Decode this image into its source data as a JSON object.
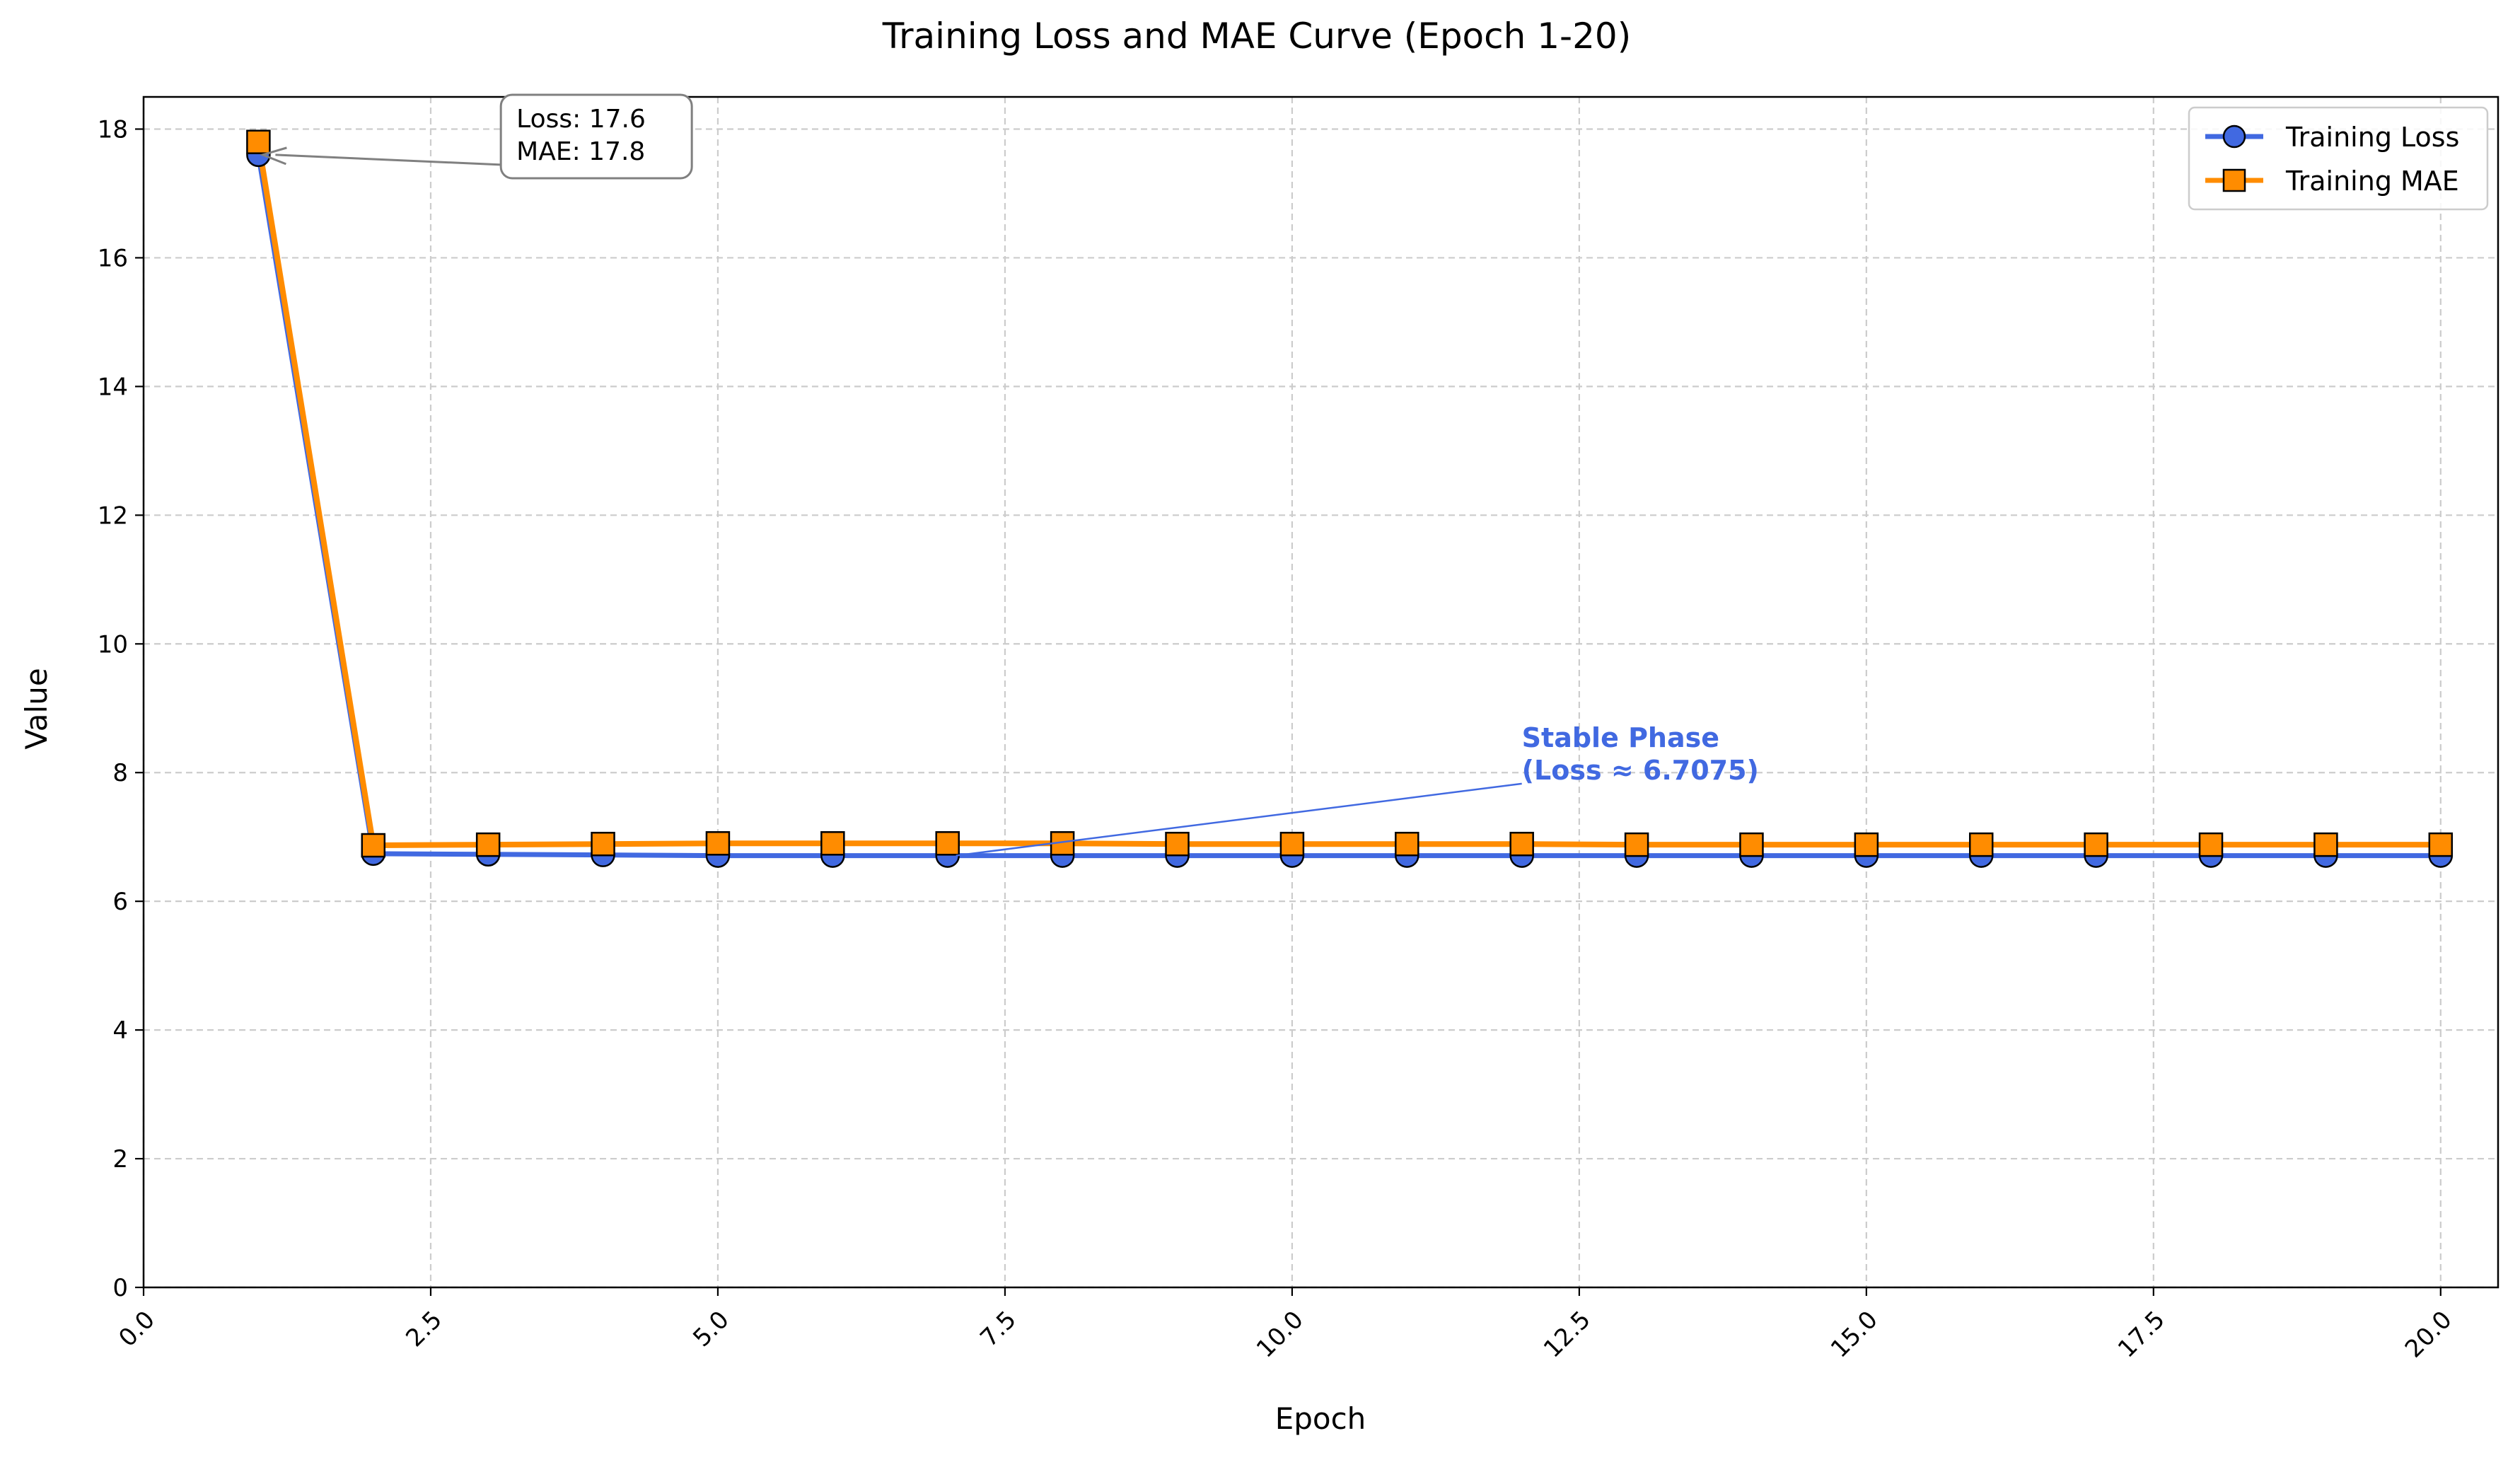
{
  "chart_data": {
    "type": "line",
    "title": "Training Loss and MAE Curve (Epoch 1-20)",
    "xlabel": "Epoch",
    "ylabel": "Value",
    "xlim": [
      0,
      20.5
    ],
    "ylim": [
      0,
      18.5
    ],
    "xticks": [
      0.0,
      2.5,
      5.0,
      7.5,
      10.0,
      12.5,
      15.0,
      17.5,
      20.0
    ],
    "xtick_labels": [
      "0.0",
      "2.5",
      "5.0",
      "7.5",
      "10.0",
      "12.5",
      "15.0",
      "17.5",
      "20.0"
    ],
    "yticks": [
      0,
      2,
      4,
      6,
      8,
      10,
      12,
      14,
      16,
      18
    ],
    "ytick_labels": [
      "0",
      "2",
      "4",
      "6",
      "8",
      "10",
      "12",
      "14",
      "16",
      "18"
    ],
    "grid": true,
    "legend_position": "top-right",
    "x": [
      1,
      2,
      3,
      4,
      5,
      6,
      7,
      8,
      9,
      10,
      11,
      12,
      13,
      14,
      15,
      16,
      17,
      18,
      19,
      20
    ],
    "series": [
      {
        "name": "Training Loss",
        "color": "#4169E1",
        "marker": "circle",
        "values": [
          17.6,
          6.74,
          6.73,
          6.72,
          6.71,
          6.71,
          6.71,
          6.71,
          6.71,
          6.71,
          6.71,
          6.71,
          6.71,
          6.71,
          6.71,
          6.71,
          6.71,
          6.71,
          6.71,
          6.71
        ]
      },
      {
        "name": "Training MAE",
        "color": "#FF8C00",
        "marker": "square",
        "values": [
          17.8,
          6.87,
          6.88,
          6.89,
          6.9,
          6.9,
          6.9,
          6.9,
          6.89,
          6.89,
          6.89,
          6.89,
          6.88,
          6.88,
          6.88,
          6.88,
          6.88,
          6.88,
          6.88,
          6.88
        ]
      }
    ],
    "annotations": [
      {
        "lines": [
          "Loss: 17.6",
          "MAE: 17.8"
        ],
        "text_x": 3.0,
        "text_y": 17.5,
        "point_x": 1,
        "point_y": 17.6,
        "style": "boxed",
        "arrow_color": "#808080"
      },
      {
        "lines": [
          "Stable Phase",
          "(Loss ≈ 6.7075)"
        ],
        "text_x": 12.0,
        "text_y": 8.4,
        "point_x": 7,
        "point_y": 6.71,
        "style": "bold",
        "color": "#4169E1"
      }
    ]
  }
}
